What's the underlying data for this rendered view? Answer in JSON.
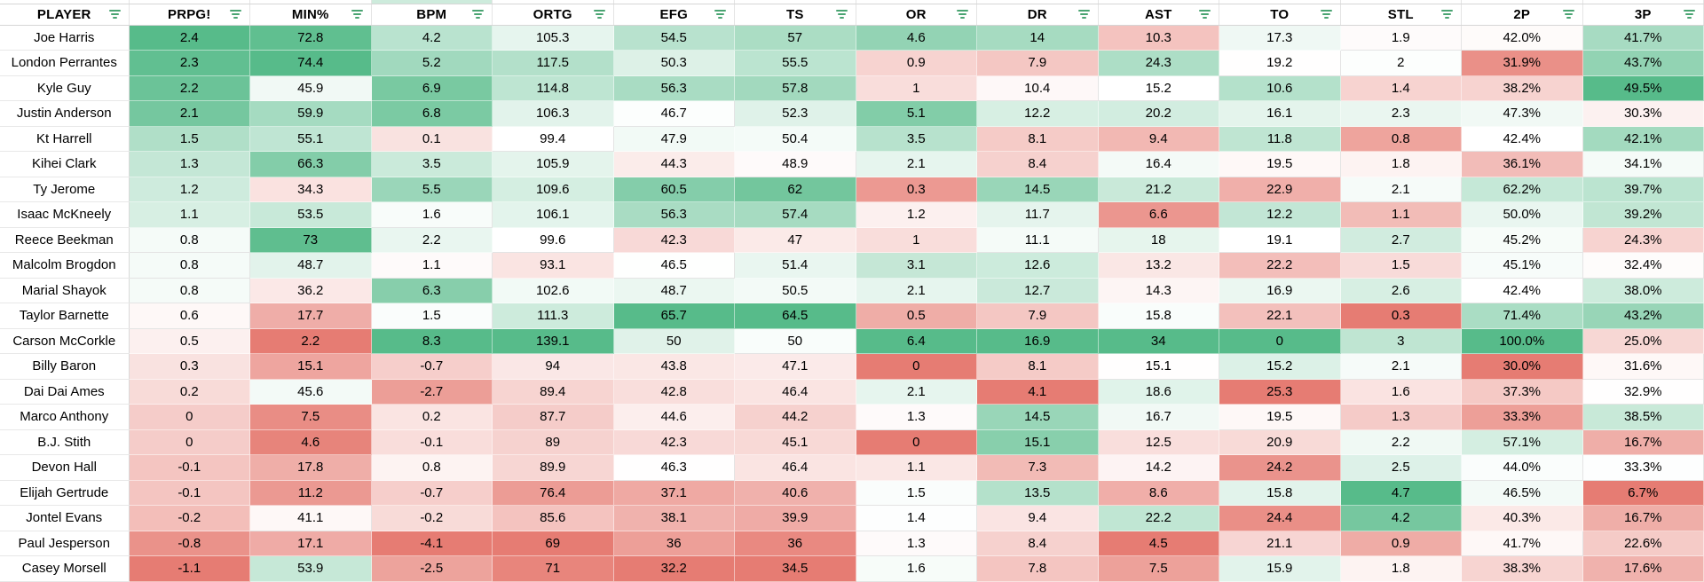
{
  "colors": {
    "scale_green": "#57BB8A",
    "scale_red": "#E67C73",
    "scale_mid": "#FFFFFF",
    "filter_icon": "#4AA472",
    "gridline": "#E4E4E4",
    "player_row_border": "#E8E8E8",
    "player_col_border": "#DADADA",
    "header_bottom_border": "#D6D6D6",
    "text": "#000000",
    "sliver_highlight": "#CDEBDC"
  },
  "table": {
    "columns": [
      {
        "id": "player",
        "label": "PLAYER"
      },
      {
        "id": "prpg",
        "label": "PRPG!"
      },
      {
        "id": "min",
        "label": "MIN%"
      },
      {
        "id": "bpm",
        "label": "BPM"
      },
      {
        "id": "ortg",
        "label": "ORTG"
      },
      {
        "id": "efg",
        "label": "EFG"
      },
      {
        "id": "ts",
        "label": "TS"
      },
      {
        "id": "or",
        "label": "OR"
      },
      {
        "id": "dr",
        "label": "DR"
      },
      {
        "id": "ast",
        "label": "AST"
      },
      {
        "id": "to",
        "label": "TO"
      },
      {
        "id": "stl",
        "label": "STL"
      },
      {
        "id": "2p",
        "label": "2P"
      },
      {
        "id": "3p",
        "label": "3P"
      }
    ],
    "inverted_columns": [
      "to"
    ],
    "sliver_highlight_column": "bpm",
    "rows": [
      {
        "player": "Joe Harris",
        "values": [
          "2.4",
          "72.8",
          "4.2",
          "105.3",
          "54.5",
          "57",
          "4.6",
          "14",
          "10.3",
          "17.3",
          "1.9",
          "42.0%",
          "41.7%"
        ]
      },
      {
        "player": "London Perrantes",
        "values": [
          "2.3",
          "74.4",
          "5.2",
          "117.5",
          "50.3",
          "55.5",
          "0.9",
          "7.9",
          "24.3",
          "19.2",
          "2",
          "31.9%",
          "43.7%"
        ]
      },
      {
        "player": "Kyle Guy",
        "values": [
          "2.2",
          "45.9",
          "6.9",
          "114.8",
          "56.3",
          "57.8",
          "1",
          "10.4",
          "15.2",
          "10.6",
          "1.4",
          "38.2%",
          "49.5%"
        ]
      },
      {
        "player": "Justin Anderson",
        "values": [
          "2.1",
          "59.9",
          "6.8",
          "106.3",
          "46.7",
          "52.3",
          "5.1",
          "12.2",
          "20.2",
          "16.1",
          "2.3",
          "47.3%",
          "30.3%"
        ]
      },
      {
        "player": "Kt Harrell",
        "values": [
          "1.5",
          "55.1",
          "0.1",
          "99.4",
          "47.9",
          "50.4",
          "3.5",
          "8.1",
          "9.4",
          "11.8",
          "0.8",
          "42.4%",
          "42.1%"
        ]
      },
      {
        "player": "Kihei Clark",
        "values": [
          "1.3",
          "66.3",
          "3.5",
          "105.9",
          "44.3",
          "48.9",
          "2.1",
          "8.4",
          "16.4",
          "19.5",
          "1.8",
          "36.1%",
          "34.1%"
        ]
      },
      {
        "player": "Ty Jerome",
        "values": [
          "1.2",
          "34.3",
          "5.5",
          "109.6",
          "60.5",
          "62",
          "0.3",
          "14.5",
          "21.2",
          "22.9",
          "2.1",
          "62.2%",
          "39.7%"
        ]
      },
      {
        "player": "Isaac McKneely",
        "values": [
          "1.1",
          "53.5",
          "1.6",
          "106.1",
          "56.3",
          "57.4",
          "1.2",
          "11.7",
          "6.6",
          "12.2",
          "1.1",
          "50.0%",
          "39.2%"
        ]
      },
      {
        "player": "Reece Beekman",
        "values": [
          "0.8",
          "73",
          "2.2",
          "99.6",
          "42.3",
          "47",
          "1",
          "11.1",
          "18",
          "19.1",
          "2.7",
          "45.2%",
          "24.3%"
        ]
      },
      {
        "player": "Malcolm Brogdon",
        "values": [
          "0.8",
          "48.7",
          "1.1",
          "93.1",
          "46.5",
          "51.4",
          "3.1",
          "12.6",
          "13.2",
          "22.2",
          "1.5",
          "45.1%",
          "32.4%"
        ]
      },
      {
        "player": "Marial Shayok",
        "values": [
          "0.8",
          "36.2",
          "6.3",
          "102.6",
          "48.7",
          "50.5",
          "2.1",
          "12.7",
          "14.3",
          "16.9",
          "2.6",
          "42.4%",
          "38.0%"
        ]
      },
      {
        "player": "Taylor Barnette",
        "values": [
          "0.6",
          "17.7",
          "1.5",
          "111.3",
          "65.7",
          "64.5",
          "0.5",
          "7.9",
          "15.8",
          "22.1",
          "0.3",
          "71.4%",
          "43.2%"
        ]
      },
      {
        "player": "Carson McCorkle",
        "values": [
          "0.5",
          "2.2",
          "8.3",
          "139.1",
          "50",
          "50",
          "6.4",
          "16.9",
          "34",
          "0",
          "3",
          "100.0%",
          "25.0%"
        ]
      },
      {
        "player": "Billy Baron",
        "values": [
          "0.3",
          "15.1",
          "-0.7",
          "94",
          "43.8",
          "47.1",
          "0",
          "8.1",
          "15.1",
          "15.2",
          "2.1",
          "30.0%",
          "31.6%"
        ]
      },
      {
        "player": "Dai Dai Ames",
        "values": [
          "0.2",
          "45.6",
          "-2.7",
          "89.4",
          "42.8",
          "46.4",
          "2.1",
          "4.1",
          "18.6",
          "25.3",
          "1.6",
          "37.3%",
          "32.9%"
        ]
      },
      {
        "player": "Marco Anthony",
        "values": [
          "0",
          "7.5",
          "0.2",
          "87.7",
          "44.6",
          "44.2",
          "1.3",
          "14.5",
          "16.7",
          "19.5",
          "1.3",
          "33.3%",
          "38.5%"
        ]
      },
      {
        "player": "B.J. Stith",
        "values": [
          "0",
          "4.6",
          "-0.1",
          "89",
          "42.3",
          "45.1",
          "0",
          "15.1",
          "12.5",
          "20.9",
          "2.2",
          "57.1%",
          "16.7%"
        ]
      },
      {
        "player": "Devon Hall",
        "values": [
          "-0.1",
          "17.8",
          "0.8",
          "89.9",
          "46.3",
          "46.4",
          "1.1",
          "7.3",
          "14.2",
          "24.2",
          "2.5",
          "44.0%",
          "33.3%"
        ]
      },
      {
        "player": "Elijah Gertrude",
        "values": [
          "-0.1",
          "11.2",
          "-0.7",
          "76.4",
          "37.1",
          "40.6",
          "1.5",
          "13.5",
          "8.6",
          "15.8",
          "4.7",
          "46.5%",
          "6.7%"
        ]
      },
      {
        "player": "Jontel Evans",
        "values": [
          "-0.2",
          "41.1",
          "-0.2",
          "85.6",
          "38.1",
          "39.9",
          "1.4",
          "9.4",
          "22.2",
          "24.4",
          "4.2",
          "40.3%",
          "16.7%"
        ]
      },
      {
        "player": "Paul Jesperson",
        "values": [
          "-0.8",
          "17.1",
          "-4.1",
          "69",
          "36",
          "36",
          "1.3",
          "8.4",
          "4.5",
          "21.1",
          "0.9",
          "41.7%",
          "22.6%"
        ]
      },
      {
        "player": "Casey Morsell",
        "values": [
          "-1.1",
          "53.9",
          "-2.5",
          "71",
          "32.2",
          "34.5",
          "1.6",
          "7.8",
          "7.5",
          "15.9",
          "1.8",
          "38.3%",
          "17.6%"
        ]
      }
    ]
  }
}
